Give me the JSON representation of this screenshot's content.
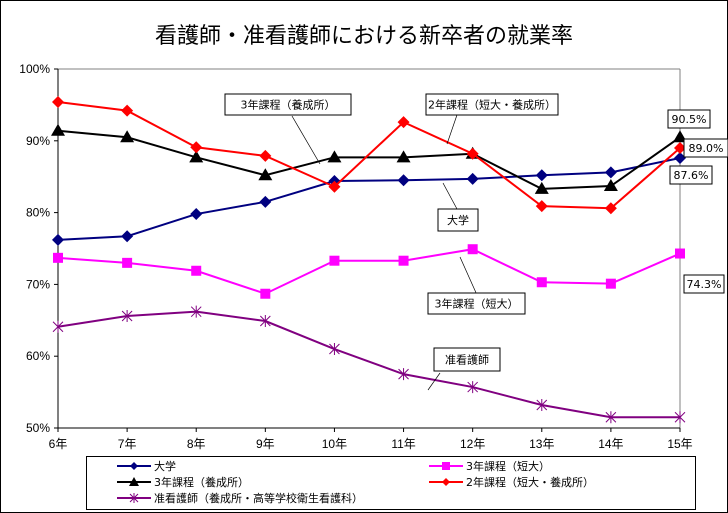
{
  "chart_data": {
    "type": "line",
    "title": "看護師・准看護師における新卒者の就業率",
    "xlabel": "",
    "ylabel": "",
    "categories": [
      "6年",
      "7年",
      "8年",
      "9年",
      "10年",
      "11年",
      "12年",
      "13年",
      "14年",
      "15年"
    ],
    "ylim": [
      50,
      100
    ],
    "yticks": [
      50,
      60,
      70,
      80,
      90,
      100
    ],
    "ytick_labels": [
      "50%",
      "60%",
      "70%",
      "80%",
      "90%",
      "100%"
    ],
    "grid": false,
    "legend_position": "bottom",
    "series": [
      {
        "key": "daigaku",
        "name": "大学",
        "color": "#000080",
        "marker": "diamond",
        "label": "大学",
        "values": [
          76.2,
          76.7,
          79.8,
          81.5,
          84.4,
          84.5,
          84.7,
          85.2,
          85.6,
          87.6
        ]
      },
      {
        "key": "tandai3",
        "name": "3年課程（短大）",
        "color": "#FF00FF",
        "marker": "square",
        "label": "3年課程（短大）",
        "values": [
          73.7,
          73.0,
          71.9,
          68.7,
          73.3,
          73.3,
          74.9,
          70.3,
          70.1,
          74.3
        ]
      },
      {
        "key": "yosei3",
        "name": "3年課程（養成所）",
        "color": "#000000",
        "marker": "triangle",
        "label": "3年課程（養成所）",
        "values": [
          91.4,
          90.5,
          87.7,
          85.2,
          87.7,
          87.7,
          88.2,
          83.3,
          83.7,
          90.5
        ]
      },
      {
        "key": "course2",
        "name": "2年課程（短大・養成所）",
        "color": "#FF0000",
        "marker": "diamond",
        "label": "2年課程（短大・養成所）",
        "values": [
          95.4,
          94.2,
          89.1,
          87.9,
          83.6,
          92.6,
          88.2,
          80.9,
          80.6,
          89.0
        ]
      },
      {
        "key": "junkango",
        "name": "准看護師（養成所・高等学校衛生看護科）",
        "color": "#800080",
        "marker": "star",
        "label": "准看護師",
        "values": [
          64.1,
          65.6,
          66.2,
          64.9,
          61.0,
          57.5,
          55.7,
          53.2,
          51.5,
          51.5
        ]
      }
    ],
    "data_labels": [
      {
        "series": "yosei3",
        "index": 9,
        "text": "90.5%"
      },
      {
        "series": "course2",
        "index": 9,
        "text": "89.0%"
      },
      {
        "series": "daigaku",
        "index": 9,
        "text": "87.6%"
      },
      {
        "series": "tandai3",
        "index": 9,
        "text": "74.3%"
      }
    ]
  }
}
